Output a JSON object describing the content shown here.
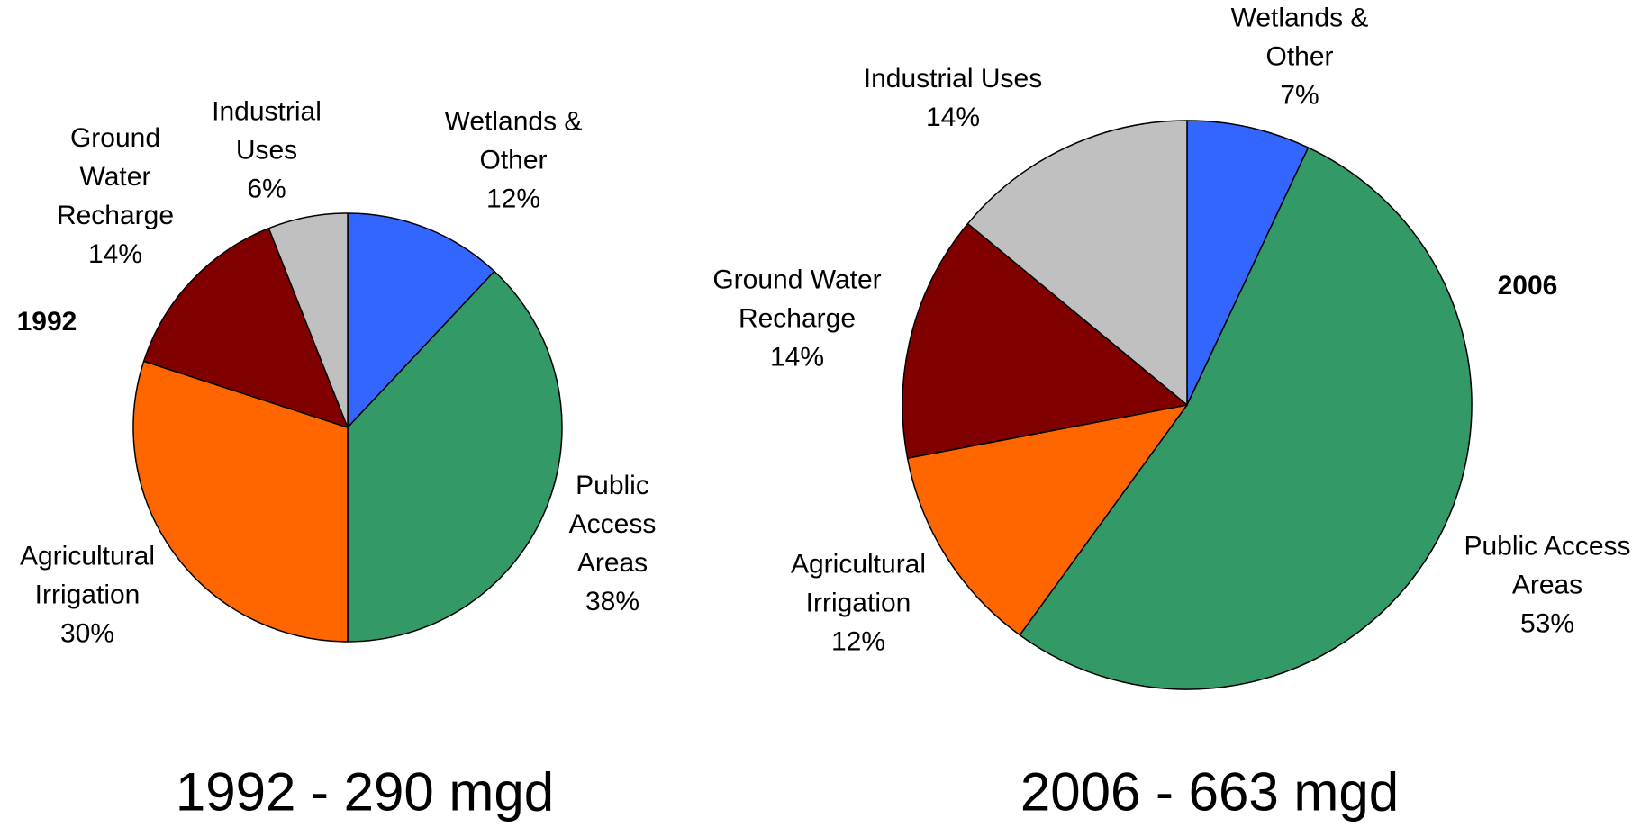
{
  "chart_data": [
    {
      "type": "pie",
      "title": "1992",
      "caption": "1992 - 290 mgd",
      "categories": [
        "Wetlands & Other",
        "Public Access Areas",
        "Agricultural Irrigation",
        "Ground Water Recharge",
        "Industrial Uses"
      ],
      "values": [
        12,
        38,
        30,
        14,
        6
      ],
      "value_labels": [
        "12%",
        "38%",
        "30%",
        "14%",
        "6%"
      ],
      "colors": [
        "#3366ff",
        "#339966",
        "#ff6600",
        "#800000",
        "#c0c0c0"
      ]
    },
    {
      "type": "pie",
      "title": "2006",
      "caption": "2006 - 663 mgd",
      "categories": [
        "Wetlands & Other",
        "Public Access Areas",
        "Agricultural Irrigation",
        "Ground Water Recharge",
        "Industrial Uses"
      ],
      "values": [
        7,
        53,
        12,
        14,
        14
      ],
      "value_labels": [
        "7%",
        "53%",
        "12%",
        "14%",
        "14%"
      ],
      "colors": [
        "#3366ff",
        "#339966",
        "#ff6600",
        "#800000",
        "#c0c0c0"
      ]
    }
  ]
}
